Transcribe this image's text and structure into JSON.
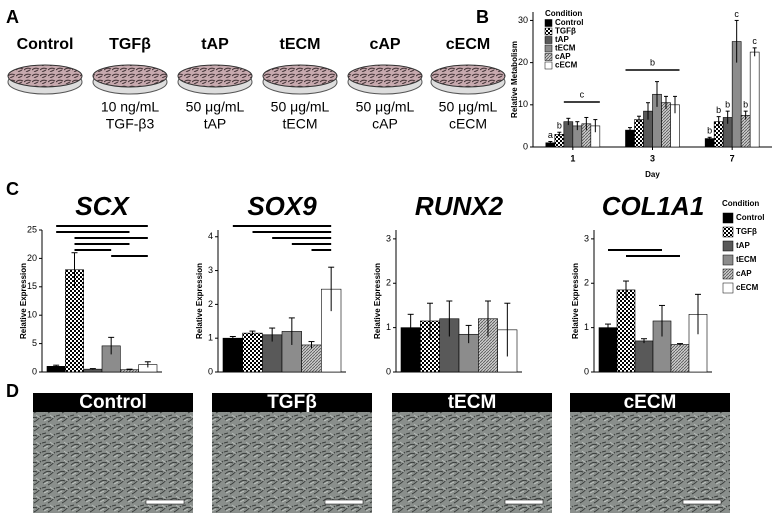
{
  "panel_a": {
    "letter": "A",
    "conditions": [
      {
        "name": "Control"
      },
      {
        "name": "TGFβ",
        "dose": "10 ng/mL",
        "agent": "TGF-β3"
      },
      {
        "name": "tAP",
        "dose": "50 μg/mL",
        "agent": "tAP"
      },
      {
        "name": "tECM",
        "dose": "50 μg/mL",
        "agent": "tECM"
      },
      {
        "name": "cAP",
        "dose": "50 μg/mL",
        "agent": "cAP"
      },
      {
        "name": "cECM",
        "dose": "50 μg/mL",
        "agent": "cECM"
      }
    ]
  },
  "panel_b": {
    "letter": "B"
  },
  "panel_c": {
    "letter": "C"
  },
  "panel_d": {
    "letter": "D",
    "images": [
      "Control",
      "TGFβ",
      "tECM",
      "cECM"
    ]
  },
  "chart_data": [
    {
      "type": "bar",
      "y_label": "Relative Metabolism",
      "x_label": "Day",
      "categories": [
        "1",
        "3",
        "7"
      ],
      "ylim": [
        0,
        32
      ],
      "yticks": [
        0,
        10,
        20,
        30
      ],
      "legend_title": "Condition",
      "legend": "top-left",
      "series": [
        {
          "name": "Control",
          "color": "#000000",
          "values": [
            1,
            4,
            2
          ],
          "errors": [
            0.3,
            0.6,
            0.3
          ],
          "annotations": [
            "a",
            null,
            "b"
          ]
        },
        {
          "name": "TGFβ",
          "color": "checker",
          "values": [
            3,
            6.5,
            6
          ],
          "errors": [
            0.5,
            0.8,
            1.2
          ],
          "annotations": [
            "b",
            null,
            "b"
          ]
        },
        {
          "name": "tAP",
          "color": "#595959",
          "values": [
            6,
            8.5,
            7
          ],
          "errors": [
            0.8,
            2,
            1.5
          ],
          "annotations": [
            null,
            null,
            "b"
          ]
        },
        {
          "name": "tECM",
          "color": "#8c8c8c",
          "values": [
            5,
            12.5,
            25
          ],
          "errors": [
            1,
            3,
            5
          ],
          "annotations": [
            null,
            null,
            "c"
          ]
        },
        {
          "name": "cAP",
          "color": "hatch",
          "values": [
            5.5,
            10.5,
            7.5
          ],
          "errors": [
            1.5,
            1.5,
            1
          ],
          "annotations": [
            null,
            null,
            "b"
          ]
        },
        {
          "name": "cECM",
          "color": "#ffffff",
          "values": [
            5,
            10,
            22.5
          ],
          "errors": [
            1.5,
            2,
            1
          ],
          "annotations": [
            null,
            null,
            "c"
          ]
        }
      ],
      "brackets": [
        {
          "text": "c"
        },
        {
          "text": "b"
        }
      ]
    },
    {
      "type": "bar",
      "title": "SCX",
      "y_label": "Relative Expression",
      "ylim": [
        0,
        25
      ],
      "yticks": [
        0,
        5,
        10,
        15,
        20,
        25
      ],
      "colors": [
        "#000000",
        "checker",
        "#595959",
        "#8c8c8c",
        "hatch",
        "#ffffff"
      ],
      "values": [
        1,
        18,
        0.5,
        4.6,
        0.4,
        1.3
      ],
      "errors": [
        0.2,
        3,
        0.1,
        1.5,
        0.1,
        0.5
      ]
    },
    {
      "type": "bar",
      "title": "SOX9",
      "y_label": "Relative Expression",
      "ylim": [
        0,
        4.2
      ],
      "yticks": [
        0,
        1,
        2,
        3,
        4
      ],
      "colors": [
        "#000000",
        "checker",
        "#595959",
        "#8c8c8c",
        "hatch",
        "#ffffff"
      ],
      "values": [
        1,
        1.15,
        1.1,
        1.2,
        0.8,
        2.45
      ],
      "errors": [
        0.05,
        0.06,
        0.2,
        0.4,
        0.1,
        0.65
      ]
    },
    {
      "type": "bar",
      "title": "RUNX2",
      "y_label": "Relative Expression",
      "ylim": [
        0,
        3.2
      ],
      "yticks": [
        0,
        1,
        2,
        3
      ],
      "colors": [
        "#000000",
        "checker",
        "#595959",
        "#8c8c8c",
        "hatch",
        "#ffffff"
      ],
      "values": [
        1,
        1.15,
        1.2,
        0.85,
        1.2,
        0.95
      ],
      "errors": [
        0.3,
        0.4,
        0.4,
        0.2,
        0.4,
        0.6
      ]
    },
    {
      "type": "bar",
      "title": "COL1A1",
      "y_label": "Relative Expression",
      "ylim": [
        0,
        3.2
      ],
      "yticks": [
        0,
        1,
        2,
        3
      ],
      "colors": [
        "#000000",
        "checker",
        "#595959",
        "#8c8c8c",
        "hatch",
        "#ffffff"
      ],
      "values": [
        1,
        1.85,
        0.7,
        1.15,
        0.62,
        1.3
      ],
      "errors": [
        0.08,
        0.2,
        0.05,
        0.35,
        0.02,
        0.45
      ],
      "legend_title": "Condition",
      "legend_entries": [
        "Control",
        "TGFβ",
        "tAP",
        "tECM",
        "cAP",
        "cECM"
      ]
    }
  ]
}
